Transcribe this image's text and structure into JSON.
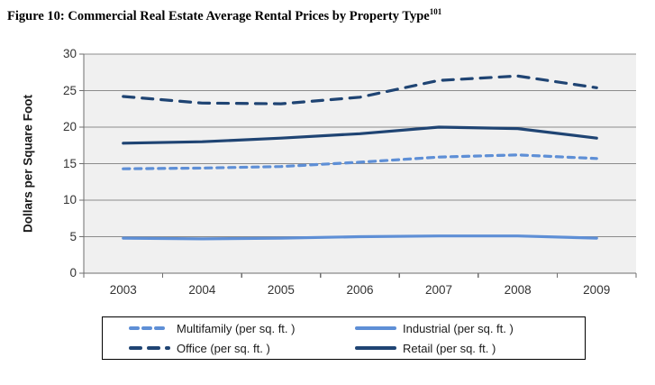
{
  "title": {
    "text": "Figure 10: Commercial Real Estate Average Rental Prices by Property Type",
    "superscript": "101"
  },
  "chart_data": {
    "type": "line",
    "title": "Figure 10: Commercial Real Estate Average Rental Prices by Property Type",
    "categories": [
      "2003",
      "2004",
      "2005",
      "2006",
      "2007",
      "2008",
      "2009"
    ],
    "series": [
      {
        "name": "Multifamily (per sq. ft. )",
        "style": "dashed",
        "color": "#5E8FD6",
        "values": [
          14.3,
          14.4,
          14.6,
          15.2,
          15.9,
          16.2,
          15.7
        ]
      },
      {
        "name": "Industrial (per sq. ft. )",
        "style": "solid",
        "color": "#5E8FD6",
        "values": [
          4.8,
          4.7,
          4.8,
          5.0,
          5.1,
          5.1,
          4.8
        ]
      },
      {
        "name": "Office (per sq. ft. )",
        "style": "dashed",
        "color": "#1F4473",
        "values": [
          24.2,
          23.3,
          23.2,
          24.1,
          26.4,
          27.0,
          25.4
        ]
      },
      {
        "name": "Retail (per sq. ft. )",
        "style": "solid",
        "color": "#1F4473",
        "values": [
          17.8,
          18.0,
          18.5,
          19.1,
          20.0,
          19.8,
          18.5
        ]
      }
    ],
    "xlabel": "",
    "ylabel": "Dollars per Square Foot",
    "ylim": [
      0,
      30
    ],
    "yticks": [
      0,
      5,
      10,
      15,
      20,
      25,
      30
    ],
    "grid": true,
    "legend_position": "bottom"
  },
  "colors": {
    "plot_background": "#F0F0F0",
    "gridline": "#8C8C8C",
    "axis": "#6E6E6E",
    "tick_text": "#333333",
    "legend_border": "#000000"
  }
}
